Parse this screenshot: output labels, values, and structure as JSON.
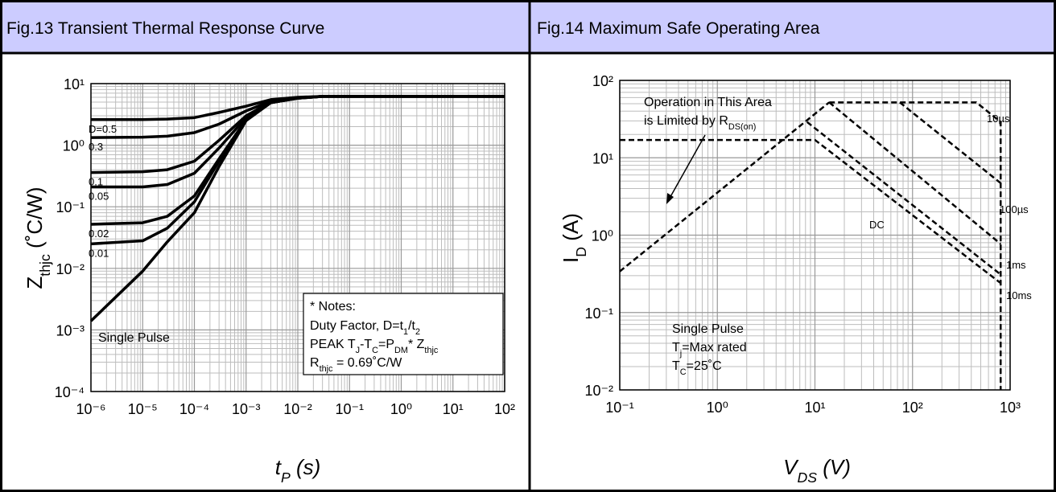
{
  "chart_data": [
    {
      "type": "line",
      "title": "Fig.13 Transient Thermal Response Curve",
      "xlabel": [
        {
          "text": "t",
          "sub": "P"
        },
        {
          "text": " (s)"
        }
      ],
      "ylabel": [
        {
          "text": "Z",
          "sub": "thjc"
        },
        {
          "text": " (˚C/W)"
        }
      ],
      "log_x": true,
      "log_y": true,
      "grid": true,
      "xlim": [
        1e-06,
        100
      ],
      "ylim": [
        0.0001,
        10
      ],
      "xticks": [
        {
          "value": 1e-06,
          "label": "10⁻⁶"
        },
        {
          "value": 1e-05,
          "label": "10⁻⁵"
        },
        {
          "value": 0.0001,
          "label": "10⁻⁴"
        },
        {
          "value": 0.001,
          "label": "10⁻³"
        },
        {
          "value": 0.01,
          "label": "10⁻²"
        },
        {
          "value": 0.1,
          "label": "10⁻¹"
        },
        {
          "value": 1,
          "label": "10⁰"
        },
        {
          "value": 10,
          "label": "10¹"
        },
        {
          "value": 100,
          "label": "10²"
        }
      ],
      "yticks": [
        {
          "value": 0.0001,
          "label": "10⁻⁴"
        },
        {
          "value": 0.001,
          "label": "10⁻³"
        },
        {
          "value": 0.01,
          "label": "10⁻²"
        },
        {
          "value": 0.1,
          "label": "10⁻¹"
        },
        {
          "value": 1,
          "label": "10⁰"
        },
        {
          "value": 10,
          "label": "10¹"
        }
      ],
      "x": [
        1e-06,
        1e-05,
        3e-05,
        0.0001,
        0.0003,
        0.001,
        0.003,
        0.01,
        0.03,
        0.1,
        1,
        10,
        100
      ],
      "series": [
        {
          "name": "D=0.5",
          "color": "#000000",
          "values": [
            2.6,
            2.6,
            2.65,
            2.8,
            3.4,
            4.3,
            5.5,
            6.0,
            6.2,
            6.2,
            6.2,
            6.2,
            6.2
          ]
        },
        {
          "name": "0.3",
          "color": "#000000",
          "values": [
            1.33,
            1.35,
            1.4,
            1.6,
            2.2,
            3.6,
            5.2,
            5.9,
            6.2,
            6.2,
            6.2,
            6.2,
            6.2
          ]
        },
        {
          "name": "0.1",
          "color": "#000000",
          "values": [
            0.36,
            0.37,
            0.4,
            0.55,
            1.2,
            3.0,
            5.0,
            5.85,
            6.2,
            6.2,
            6.2,
            6.2,
            6.2
          ]
        },
        {
          "name": "0.05",
          "color": "#000000",
          "values": [
            0.21,
            0.21,
            0.23,
            0.35,
            0.9,
            2.8,
            4.95,
            5.8,
            6.2,
            6.2,
            6.2,
            6.2,
            6.2
          ]
        },
        {
          "name": "0.02",
          "color": "#000000",
          "values": [
            0.052,
            0.055,
            0.07,
            0.15,
            0.6,
            2.6,
            4.9,
            5.8,
            6.2,
            6.2,
            6.2,
            6.2,
            6.2
          ]
        },
        {
          "name": "0.01",
          "color": "#000000",
          "values": [
            0.025,
            0.028,
            0.045,
            0.12,
            0.55,
            2.55,
            4.9,
            5.8,
            6.2,
            6.2,
            6.2,
            6.2,
            6.2
          ]
        },
        {
          "name": "Single Pulse",
          "color": "#000000",
          "values": [
            0.0014,
            0.009,
            0.027,
            0.08,
            0.45,
            2.5,
            4.9,
            5.8,
            6.2,
            6.2,
            6.2,
            6.2,
            6.2
          ]
        }
      ],
      "notes": [
        [
          {
            "text": "* Notes:"
          }
        ],
        [
          {
            "text": "Duty Factor, D=t",
            "sub": "1"
          },
          {
            "text": "/t",
            "sub": "2"
          }
        ],
        [
          {
            "text": "PEAK T",
            "sub": "J"
          },
          {
            "text": "-T",
            "sub": "C"
          },
          {
            "text": "=P",
            "sub": "DM"
          },
          {
            "text": "* Z",
            "sub": "thjc"
          }
        ],
        [
          {
            "text": "R",
            "sub": "thjc"
          },
          {
            "text": " = 0.69˚C/W"
          }
        ]
      ]
    },
    {
      "type": "line",
      "title": "Fig.14 Maximum Safe Operating Area",
      "xlabel": [
        {
          "text": "V",
          "sub": "DS"
        },
        {
          "text": " (V)"
        }
      ],
      "ylabel": [
        {
          "text": "I",
          "sub": "D"
        },
        {
          "text": " (A)"
        }
      ],
      "log_x": true,
      "log_y": true,
      "grid": true,
      "dashed": true,
      "xlim": [
        0.1,
        1000
      ],
      "ylim": [
        0.01,
        100
      ],
      "xticks": [
        {
          "value": 0.1,
          "label": "10⁻¹"
        },
        {
          "value": 1,
          "label": "10⁰"
        },
        {
          "value": 10,
          "label": "10¹"
        },
        {
          "value": 100,
          "label": "10²"
        },
        {
          "value": 1000,
          "label": "10³"
        }
      ],
      "yticks": [
        {
          "value": 0.01,
          "label": "10⁻²"
        },
        {
          "value": 0.1,
          "label": "10⁻¹"
        },
        {
          "value": 1,
          "label": "10⁰"
        },
        {
          "value": 10,
          "label": "10¹"
        },
        {
          "value": 100,
          "label": "10²"
        }
      ],
      "series": [
        {
          "color": "#000000",
          "x": [
            0.1,
            14
          ],
          "values": [
            0.34,
            52
          ]
        },
        {
          "name": "10µs",
          "color": "#000000",
          "x": [
            14,
            450,
            800,
            800
          ],
          "values": [
            52,
            52,
            29,
            0.01
          ]
        },
        {
          "name": "100µs",
          "color": "#000000",
          "x": [
            74,
            800
          ],
          "values": [
            52,
            4.7
          ]
        },
        {
          "name": "1ms",
          "color": "#000000",
          "x": [
            14,
            800
          ],
          "values": [
            52,
            0.77
          ]
        },
        {
          "name": "10ms",
          "color": "#000000",
          "x": [
            8.3,
            800
          ],
          "values": [
            29,
            0.31
          ]
        },
        {
          "name": "DC",
          "color": "#000000",
          "x": [
            0.1,
            10,
            800
          ],
          "values": [
            17,
            17,
            0.24
          ]
        }
      ],
      "notes": [
        [
          {
            "text": "Operation in This Area"
          }
        ],
        [
          {
            "text": "is Limited by R",
            "sub": "DS(on)"
          }
        ],
        [
          {
            "text": "Single Pulse"
          }
        ],
        [
          {
            "text": "T",
            "sub": "j"
          },
          {
            "text": "=Max rated"
          }
        ],
        [
          {
            "text": "T",
            "sub": "C"
          },
          {
            "text": "=25˚C"
          }
        ]
      ]
    }
  ]
}
